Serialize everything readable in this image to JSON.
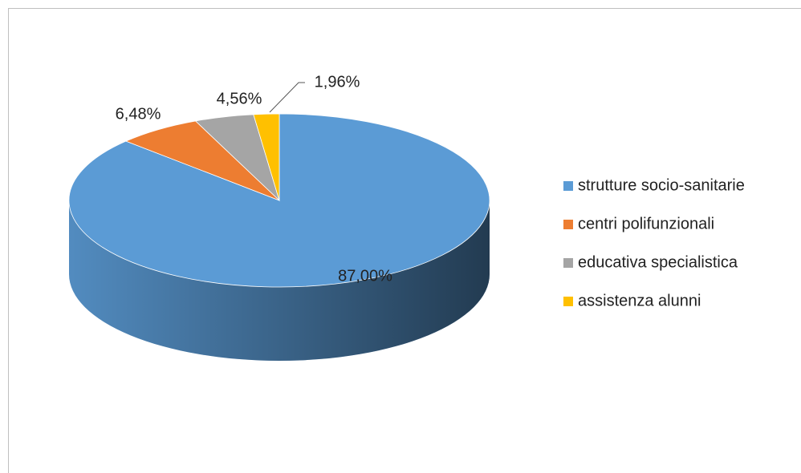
{
  "chart_data": {
    "type": "pie",
    "categories": [
      "strutture socio-sanitarie",
      "centri polifunzionali",
      "educativa specialistica",
      "assistenza alunni"
    ],
    "values": [
      87.0,
      6.48,
      4.56,
      1.96
    ],
    "value_labels": [
      "87,00%",
      "6,48%",
      "4,56%",
      "1,96%"
    ],
    "colors": [
      "#5b9bd5",
      "#ed7d31",
      "#a5a5a5",
      "#ffc000"
    ],
    "legend": "right"
  }
}
